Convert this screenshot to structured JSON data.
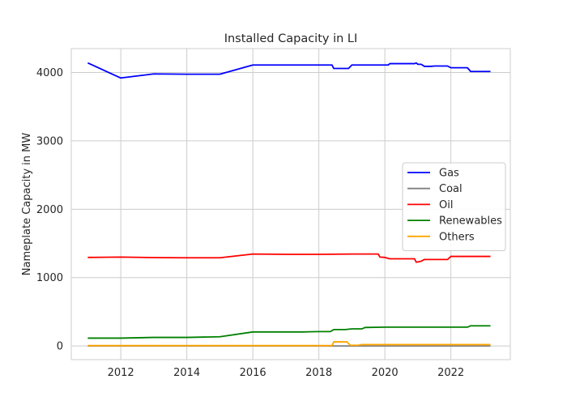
{
  "chart_data": {
    "type": "line",
    "title": "Installed Capacity in LI",
    "xlabel": "",
    "ylabel": "Nameplate Capacity in MW",
    "xlim": [
      2010.5,
      2023.8
    ],
    "ylim": [
      -200,
      4350
    ],
    "xticks": [
      2012,
      2014,
      2016,
      2018,
      2020,
      2022
    ],
    "yticks": [
      0,
      1000,
      2000,
      3000,
      4000
    ],
    "grid": true,
    "legend_position": "center-right",
    "series": [
      {
        "name": "Gas",
        "color": "#0000ff",
        "points": [
          [
            2011.0,
            4140
          ],
          [
            2012.0,
            3920
          ],
          [
            2013.0,
            3980
          ],
          [
            2014.0,
            3975
          ],
          [
            2015.0,
            3975
          ],
          [
            2016.0,
            4110
          ],
          [
            2017.0,
            4110
          ],
          [
            2017.5,
            4110
          ],
          [
            2018.4,
            4110
          ],
          [
            2018.45,
            4060
          ],
          [
            2018.9,
            4060
          ],
          [
            2019.0,
            4110
          ],
          [
            2020.1,
            4110
          ],
          [
            2020.15,
            4130
          ],
          [
            2020.9,
            4130
          ],
          [
            2020.95,
            4140
          ],
          [
            2021.0,
            4120
          ],
          [
            2021.1,
            4120
          ],
          [
            2021.2,
            4090
          ],
          [
            2021.4,
            4090
          ],
          [
            2021.5,
            4095
          ],
          [
            2021.9,
            4095
          ],
          [
            2022.0,
            4070
          ],
          [
            2022.5,
            4070
          ],
          [
            2022.6,
            4015
          ],
          [
            2023.2,
            4015
          ]
        ]
      },
      {
        "name": "Coal",
        "color": "#808080",
        "points": [
          [
            2011.0,
            0
          ],
          [
            2023.2,
            0
          ]
        ]
      },
      {
        "name": "Oil",
        "color": "#ff0000",
        "points": [
          [
            2011.0,
            1295
          ],
          [
            2012.0,
            1300
          ],
          [
            2013.0,
            1293
          ],
          [
            2014.0,
            1290
          ],
          [
            2015.0,
            1290
          ],
          [
            2016.0,
            1345
          ],
          [
            2017.0,
            1340
          ],
          [
            2018.0,
            1340
          ],
          [
            2019.0,
            1345
          ],
          [
            2019.8,
            1345
          ],
          [
            2019.85,
            1300
          ],
          [
            2020.0,
            1295
          ],
          [
            2020.15,
            1275
          ],
          [
            2020.9,
            1275
          ],
          [
            2020.95,
            1225
          ],
          [
            2021.1,
            1240
          ],
          [
            2021.2,
            1265
          ],
          [
            2021.9,
            1265
          ],
          [
            2022.0,
            1310
          ],
          [
            2023.2,
            1310
          ]
        ]
      },
      {
        "name": "Renewables",
        "color": "#008000",
        "points": [
          [
            2011.0,
            115
          ],
          [
            2012.0,
            115
          ],
          [
            2013.0,
            125
          ],
          [
            2014.0,
            125
          ],
          [
            2015.0,
            135
          ],
          [
            2016.0,
            205
          ],
          [
            2017.0,
            205
          ],
          [
            2017.5,
            205
          ],
          [
            2018.0,
            210
          ],
          [
            2018.35,
            210
          ],
          [
            2018.45,
            240
          ],
          [
            2018.8,
            240
          ],
          [
            2019.0,
            250
          ],
          [
            2019.3,
            250
          ],
          [
            2019.4,
            270
          ],
          [
            2020.0,
            275
          ],
          [
            2022.0,
            275
          ],
          [
            2022.5,
            275
          ],
          [
            2022.6,
            295
          ],
          [
            2023.2,
            295
          ]
        ]
      },
      {
        "name": "Others",
        "color": "#ffa500",
        "points": [
          [
            2011.0,
            5
          ],
          [
            2018.4,
            5
          ],
          [
            2018.45,
            60
          ],
          [
            2018.85,
            60
          ],
          [
            2018.95,
            10
          ],
          [
            2019.2,
            10
          ],
          [
            2019.3,
            20
          ],
          [
            2023.2,
            20
          ]
        ]
      }
    ]
  }
}
